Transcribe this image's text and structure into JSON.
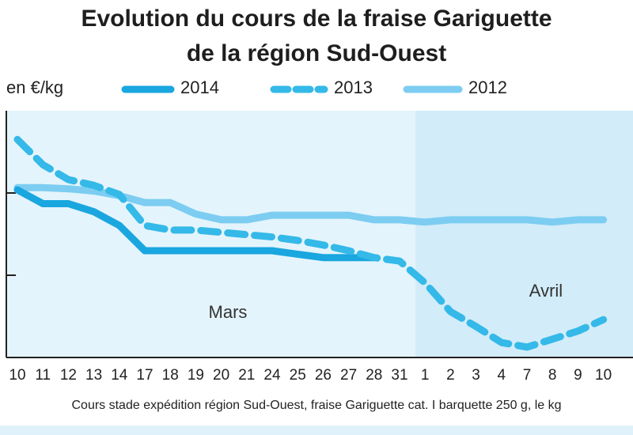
{
  "title_line1": "Evolution du cours de la fraise Gariguette",
  "title_line2": "de la région Sud-Ouest",
  "footnote": "Cours stade expédition région Sud-Ouest, fraise Gariguette cat. I barquette 250 g, le kg",
  "colors": {
    "bg_mars": "#e4f4fc",
    "bg_avril": "#d2ecf9",
    "line_2014": "#1aa6df",
    "line_2013": "#34b9e8",
    "line_2012": "#7ccdf1"
  },
  "chart_data": {
    "type": "line",
    "ylabel": "en €/kg",
    "x": [
      "10",
      "11",
      "12",
      "13",
      "14",
      "17",
      "18",
      "19",
      "20",
      "21",
      "24",
      "25",
      "26",
      "27",
      "28",
      "31",
      "1",
      "2",
      "3",
      "4",
      "7",
      "8",
      "9",
      "10"
    ],
    "zones": [
      {
        "label": "Mars",
        "from": "10",
        "to": "31"
      },
      {
        "label": "Avril",
        "from": "1",
        "to": "10"
      }
    ],
    "y_axis_ticks": 3,
    "legend_position": "top",
    "series": [
      {
        "name": "2014",
        "style": "solid-thick",
        "values": [
          2.06,
          1.94,
          1.94,
          1.87,
          1.75,
          1.53,
          1.53,
          1.53,
          1.53,
          1.53,
          1.53,
          1.5,
          1.47,
          1.47,
          1.47,
          null,
          null,
          null,
          null,
          null,
          null,
          null,
          null,
          null
        ]
      },
      {
        "name": "2013",
        "style": "dashed",
        "values": [
          2.5,
          2.28,
          2.15,
          2.1,
          2.02,
          1.75,
          1.71,
          1.71,
          1.69,
          1.67,
          1.65,
          1.62,
          1.58,
          1.53,
          1.47,
          1.44,
          1.25,
          1.0,
          0.87,
          0.73,
          0.69,
          0.76,
          0.83,
          0.93
        ]
      },
      {
        "name": "2012",
        "style": "solid-light",
        "values": [
          2.08,
          2.08,
          2.07,
          2.05,
          2.01,
          1.95,
          1.95,
          1.85,
          1.8,
          1.8,
          1.84,
          1.84,
          1.84,
          1.84,
          1.8,
          1.8,
          1.78,
          1.8,
          1.8,
          1.8,
          1.8,
          1.78,
          1.8,
          1.8
        ]
      }
    ]
  }
}
